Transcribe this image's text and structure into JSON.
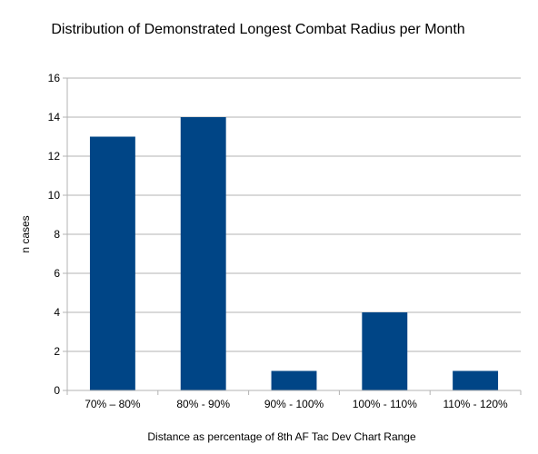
{
  "chart_data": {
    "type": "bar",
    "title": "Distribution of Demonstrated Longest Combat Radius per Month",
    "xlabel": "Distance as percentage of 8th AF Tac Dev Chart Range",
    "ylabel": "n cases",
    "categories": [
      "70% – 80%",
      "80% - 90%",
      "90% - 100%",
      "100% - 110%",
      "110% - 120%"
    ],
    "values": [
      13,
      14,
      1,
      4,
      1
    ],
    "ylim": [
      0,
      16
    ],
    "yticks": [
      0,
      2,
      4,
      6,
      8,
      10,
      12,
      14,
      16
    ],
    "grid": true,
    "legend": "none",
    "colors": {
      "bar": "#004586",
      "grid": "#b3b3b3",
      "axis": "#b3b3b3"
    }
  }
}
